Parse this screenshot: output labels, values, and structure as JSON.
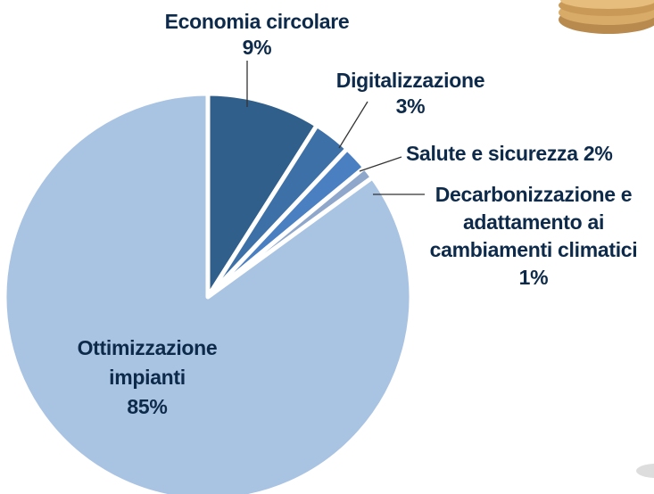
{
  "chart_data": {
    "type": "pie",
    "categories": [
      "Economia circolare",
      "Digitalizzazione",
      "Salute e sicurezza",
      "Decarbonizzazione e adattamento ai cambiamenti climatici",
      "Ottimizzazione impianti"
    ],
    "values": [
      9,
      3,
      2,
      1,
      85
    ],
    "value_labels": [
      "9%",
      "3%",
      "2%",
      "1%",
      "85%"
    ],
    "colors": [
      "#2f5f8a",
      "#3d70a6",
      "#4a7fc2",
      "#8ea7cb",
      "#a9c3e3"
    ]
  }
}
